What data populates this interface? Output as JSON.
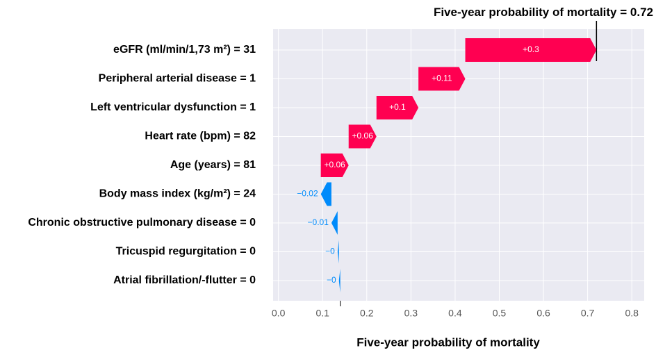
{
  "chart_data": {
    "type": "waterfall",
    "fx_label": "Five-year probability of mortality =",
    "fx": 0.72,
    "xlabel": "Five-year probability of mortality",
    "categories": [
      "eGFR (ml/min/1,73 m²) = 31",
      "Peripheral arterial disease = 1",
      "Left ventricular dysfunction = 1",
      "Heart rate (bpm) = 82",
      "Age (years) = 81",
      "Body mass index (kg/m²) = 24",
      "Chronic obstructive pulmonary disease = 0",
      "Tricuspid regurgitation = 0",
      "Atrial fibrillation/-flutter = 0"
    ],
    "values": [
      0.297,
      0.106,
      0.095,
      0.063,
      0.063,
      -0.024,
      -0.014,
      -0.003,
      -0.003
    ],
    "value_labels": [
      "+0.3",
      "+0.11",
      "+0.1",
      "+0.06",
      "+0.06",
      "−0.02",
      "−0.01",
      "−0",
      "−0"
    ],
    "positive_color": "#ff0051",
    "negative_color": "#008bfb",
    "xlim": [
      -0.012,
      0.828
    ],
    "xticks": [
      {
        "value": 0,
        "label": "0.0"
      },
      0.1,
      0.2,
      0.3,
      0.4,
      0.5,
      0.6,
      0.7,
      0.8
    ],
    "grid": true
  }
}
